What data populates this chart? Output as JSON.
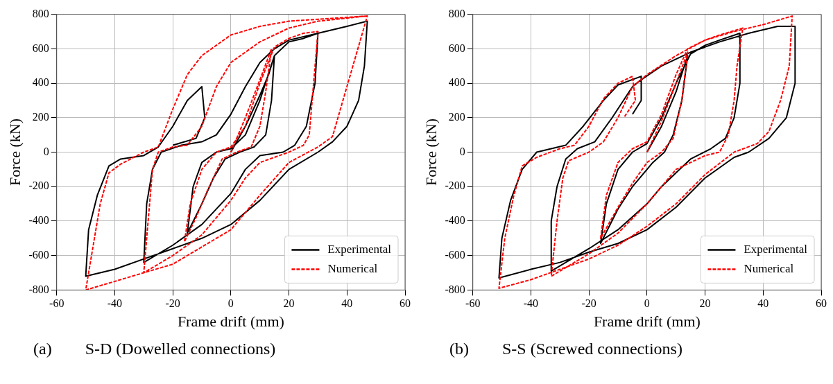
{
  "chart_data": [
    {
      "type": "line",
      "xlabel": "Frame drift (mm)",
      "ylabel": "Force (kN)",
      "xlim": [
        -60,
        60
      ],
      "xticks": [
        -60,
        -40,
        -20,
        0,
        20,
        40,
        60
      ],
      "ylim": [
        -800,
        800
      ],
      "yticks": [
        -800,
        -600,
        -400,
        -200,
        0,
        200,
        400,
        600,
        800
      ],
      "grid": true,
      "legend": "bottom right",
      "marker": "none",
      "annotations": [
        "(a)        S-D (Dowelled connections)"
      ],
      "series": [
        {
          "name": "Experimental",
          "color": "#000000",
          "line_style": "solid",
          "x": [
            0,
            5,
            10,
            13,
            15,
            14,
            12,
            8,
            3,
            -2,
            -6,
            -10,
            -15,
            -13,
            -10,
            -5,
            0,
            5,
            10,
            15,
            20,
            25,
            30,
            29,
            26,
            22,
            18,
            10,
            5,
            0,
            -10,
            -20,
            -30,
            -29,
            -27,
            -24,
            -17,
            -10,
            -5,
            0,
            5,
            10,
            15,
            20,
            30,
            40,
            47,
            46,
            44,
            40,
            35,
            30,
            20,
            10,
            0,
            -10,
            -20,
            -30,
            -40,
            -50,
            -49,
            -46,
            -42,
            -38,
            -30,
            -25,
            -20,
            -15,
            -10,
            -9,
            -12,
            -20
          ],
          "values": [
            0,
            150,
            330,
            450,
            560,
            300,
            100,
            30,
            0,
            -40,
            -150,
            -300,
            -470,
            -200,
            -60,
            0,
            20,
            100,
            300,
            560,
            640,
            660,
            690,
            400,
            150,
            40,
            0,
            -20,
            -100,
            -240,
            -420,
            -540,
            -640,
            -300,
            -100,
            0,
            40,
            60,
            100,
            220,
            380,
            520,
            600,
            650,
            690,
            730,
            760,
            500,
            300,
            150,
            60,
            0,
            -100,
            -280,
            -420,
            -500,
            -560,
            -620,
            -680,
            -720,
            -450,
            -250,
            -80,
            -40,
            -20,
            30,
            150,
            300,
            380,
            200,
            80,
            40
          ]
        },
        {
          "name": "Numerical",
          "color": "#ff0000",
          "line_style": "dashed",
          "x": [
            0,
            5,
            10,
            14,
            12,
            10,
            7,
            2,
            -3,
            -8,
            -12,
            -16,
            -14,
            -10,
            -5,
            0,
            5,
            10,
            15,
            20,
            25,
            30,
            28,
            27,
            25,
            20,
            10,
            5,
            0,
            -10,
            -20,
            -30,
            -28,
            -27,
            -25,
            -20,
            -15,
            -10,
            -5,
            0,
            10,
            20,
            30,
            47,
            35,
            30,
            20,
            10,
            0,
            -20,
            -50,
            -45,
            -42,
            -38,
            -30,
            -25,
            -20,
            -15,
            -10,
            0,
            10,
            20,
            47
          ],
          "values": [
            0,
            200,
            420,
            600,
            350,
            150,
            30,
            0,
            -40,
            -220,
            -380,
            -520,
            -300,
            -100,
            0,
            30,
            150,
            400,
            610,
            660,
            690,
            700,
            300,
            100,
            40,
            0,
            -60,
            -150,
            -280,
            -480,
            -600,
            -700,
            -300,
            -100,
            0,
            30,
            40,
            150,
            380,
            520,
            640,
            720,
            760,
            790,
            90,
            30,
            -60,
            -250,
            -450,
            -650,
            -800,
            -300,
            -120,
            -70,
            0,
            30,
            250,
            450,
            560,
            680,
            730,
            760,
            790
          ]
        }
      ]
    },
    {
      "type": "line",
      "xlabel": "Frame drift (mm)",
      "ylabel": "Force (kN)",
      "xlim": [
        -60,
        60
      ],
      "xticks": [
        -60,
        -40,
        -20,
        0,
        20,
        40,
        60
      ],
      "ylim": [
        -800,
        800
      ],
      "yticks": [
        -800,
        -600,
        -400,
        -200,
        0,
        200,
        400,
        600,
        800
      ],
      "grid": true,
      "legend": "bottom right",
      "marker": "none",
      "annotations": [
        "(b)        S-S (Screwed connections)"
      ],
      "series": [
        {
          "name": "Experimental",
          "color": "#000000",
          "line_style": "solid",
          "x": [
            0,
            5,
            10,
            14,
            12,
            9,
            6,
            2,
            -5,
            -10,
            -16,
            -14,
            -10,
            -5,
            0,
            5,
            10,
            15,
            20,
            25,
            32,
            32,
            30,
            27,
            22,
            15,
            10,
            5,
            0,
            -10,
            -20,
            -33,
            -33,
            -31,
            -28,
            -24,
            -18,
            -12,
            -5,
            -2,
            5,
            15,
            25,
            35,
            45,
            51,
            51,
            48,
            42,
            35,
            30,
            20,
            10,
            0,
            -10,
            -20,
            -30,
            -40,
            -51,
            -50,
            -47,
            -43,
            -38,
            -33,
            -28,
            -22,
            -15,
            -10,
            -2,
            -2,
            -5
          ],
          "values": [
            0,
            150,
            350,
            560,
            300,
            100,
            0,
            -60,
            -200,
            -330,
            -530,
            -300,
            -100,
            0,
            50,
            200,
            400,
            570,
            620,
            650,
            690,
            400,
            200,
            80,
            20,
            -40,
            -120,
            -200,
            -300,
            -450,
            -560,
            -690,
            -400,
            -200,
            -40,
            20,
            60,
            200,
            380,
            420,
            500,
            580,
            640,
            690,
            730,
            730,
            400,
            200,
            80,
            0,
            -30,
            -150,
            -320,
            -450,
            -530,
            -580,
            -640,
            -680,
            -730,
            -500,
            -280,
            -100,
            0,
            20,
            40,
            150,
            300,
            390,
            440,
            300,
            220
          ]
        },
        {
          "name": "Numerical",
          "color": "#ff0000",
          "line_style": "dashed",
          "x": [
            0,
            5,
            10,
            14,
            12,
            9,
            5,
            0,
            -5,
            -10,
            -16,
            -14,
            -10,
            -5,
            0,
            5,
            10,
            14,
            20,
            25,
            33,
            31,
            30,
            28,
            25,
            20,
            10,
            5,
            0,
            -10,
            -20,
            -33,
            -31,
            -29,
            -27,
            -20,
            -15,
            -10,
            -5,
            0,
            10,
            20,
            30,
            40,
            50,
            49,
            46,
            42,
            38,
            30,
            20,
            10,
            0,
            -10,
            -20,
            -30,
            -40,
            -51,
            -49,
            -46,
            -43,
            -38,
            -30,
            -25,
            -20,
            -15,
            -10,
            -5,
            -4,
            -8
          ],
          "values": [
            0,
            180,
            400,
            580,
            300,
            80,
            0,
            -60,
            -180,
            -320,
            -500,
            -250,
            -60,
            20,
            60,
            220,
            450,
            600,
            650,
            680,
            720,
            500,
            300,
            100,
            0,
            -20,
            -100,
            -200,
            -300,
            -470,
            -590,
            -720,
            -400,
            -150,
            -50,
            0,
            60,
            200,
            380,
            450,
            560,
            650,
            700,
            740,
            790,
            500,
            300,
            120,
            50,
            0,
            -130,
            -300,
            -430,
            -540,
            -620,
            -680,
            -740,
            -790,
            -500,
            -260,
            -80,
            -30,
            20,
            40,
            150,
            310,
            400,
            440,
            300,
            200
          ]
        }
      ]
    }
  ]
}
